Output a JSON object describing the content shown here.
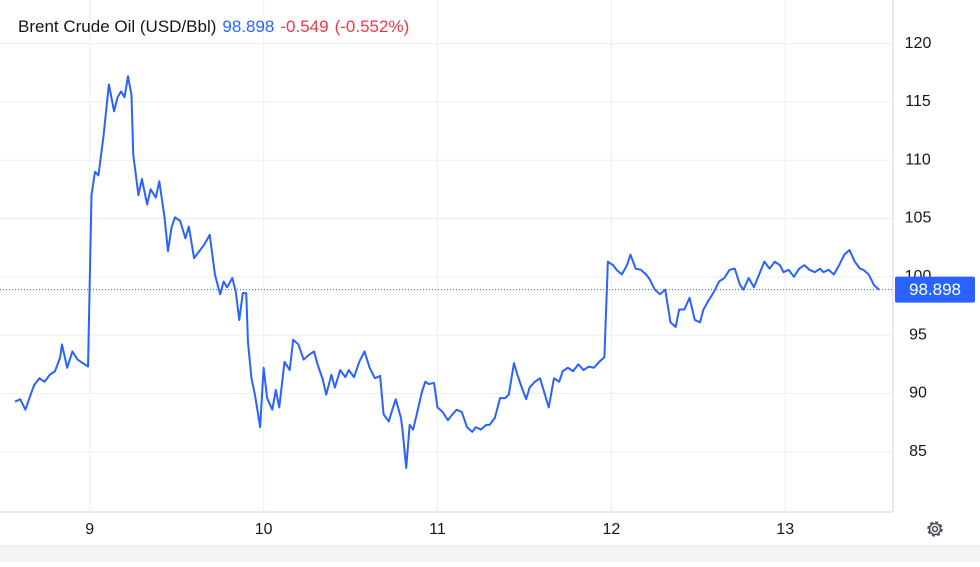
{
  "chart_data": {
    "type": "line",
    "title": "Brent Crude Oil (USD/Bbl)",
    "last_price": 98.898,
    "change": "-0.549",
    "change_percent": "(-0.552%)",
    "color": "#2962ff",
    "grid": true,
    "xlim": [
      8.57,
      13.62
    ],
    "xticks": [
      9,
      10,
      11,
      12,
      13
    ],
    "ylim": [
      80,
      123.4
    ],
    "yticks": [
      85,
      90,
      95,
      100,
      105,
      110,
      115,
      120
    ],
    "x": [
      8.57,
      8.6,
      8.63,
      8.66,
      8.68,
      8.71,
      8.74,
      8.77,
      8.8,
      8.83,
      8.84,
      8.87,
      8.9,
      8.93,
      8.95,
      8.99,
      9.01,
      9.03,
      9.05,
      9.08,
      9.11,
      9.14,
      9.16,
      9.18,
      9.2,
      9.22,
      9.24,
      9.25,
      9.28,
      9.3,
      9.33,
      9.35,
      9.38,
      9.4,
      9.43,
      9.45,
      9.47,
      9.49,
      9.52,
      9.55,
      9.57,
      9.6,
      9.63,
      9.66,
      9.69,
      9.72,
      9.75,
      9.77,
      9.79,
      9.82,
      9.84,
      9.86,
      9.88,
      9.9,
      9.91,
      9.93,
      9.95,
      9.98,
      10.0,
      10.02,
      10.05,
      10.07,
      10.09,
      10.12,
      10.15,
      10.17,
      10.2,
      10.23,
      10.26,
      10.29,
      10.31,
      10.34,
      10.36,
      10.39,
      10.41,
      10.44,
      10.47,
      10.49,
      10.52,
      10.55,
      10.58,
      10.61,
      10.64,
      10.67,
      10.69,
      10.72,
      10.74,
      10.76,
      10.79,
      10.8,
      10.82,
      10.84,
      10.86,
      10.89,
      10.91,
      10.93,
      10.95,
      10.98,
      11.0,
      11.03,
      11.06,
      11.08,
      11.11,
      11.14,
      11.17,
      11.2,
      11.22,
      11.25,
      11.28,
      11.3,
      11.33,
      11.36,
      11.39,
      11.41,
      11.44,
      11.46,
      11.48,
      11.51,
      11.53,
      11.56,
      11.59,
      11.61,
      11.64,
      11.67,
      11.7,
      11.72,
      11.75,
      11.78,
      11.81,
      11.84,
      11.87,
      11.9,
      11.93,
      11.96,
      11.98,
      12.01,
      12.03,
      12.06,
      12.09,
      12.11,
      12.14,
      12.17,
      12.2,
      12.22,
      12.25,
      12.28,
      12.31,
      12.34,
      12.37,
      12.39,
      12.42,
      12.45,
      12.48,
      12.51,
      12.53,
      12.56,
      12.59,
      12.62,
      12.65,
      12.68,
      12.71,
      12.74,
      12.76,
      12.79,
      12.82,
      12.85,
      12.88,
      12.91,
      12.94,
      12.97,
      12.99,
      13.02,
      13.05,
      13.08,
      13.11,
      13.14,
      13.17,
      13.2,
      13.22,
      13.25,
      13.28,
      13.31,
      13.34,
      13.37,
      13.4,
      13.43,
      13.45,
      13.48,
      13.51,
      13.54
    ],
    "series": [
      {
        "name": "Brent Crude Oil",
        "color": "#2962ff",
        "values": [
          89.3,
          89.5,
          88.6,
          89.9,
          90.7,
          91.3,
          91.0,
          91.6,
          91.9,
          93.1,
          94.2,
          92.2,
          93.6,
          92.9,
          92.7,
          92.3,
          107.0,
          109.0,
          108.7,
          112.2,
          116.5,
          114.2,
          115.4,
          115.9,
          115.4,
          117.2,
          115.6,
          110.5,
          107.0,
          108.4,
          106.2,
          107.5,
          106.8,
          108.2,
          105.1,
          102.2,
          104.2,
          105.1,
          104.8,
          103.3,
          104.3,
          101.6,
          102.2,
          102.8,
          103.6,
          100.2,
          98.5,
          99.6,
          99.1,
          99.9,
          98.7,
          96.3,
          98.6,
          98.6,
          94.4,
          91.3,
          89.9,
          87.1,
          92.2,
          89.6,
          88.6,
          90.3,
          88.8,
          92.7,
          92.0,
          94.6,
          94.2,
          92.9,
          93.3,
          93.6,
          92.5,
          91.2,
          89.9,
          91.6,
          90.5,
          92.0,
          91.4,
          92.0,
          91.4,
          92.7,
          93.6,
          92.2,
          91.3,
          91.5,
          88.2,
          87.6,
          88.6,
          89.5,
          87.9,
          86.7,
          83.6,
          87.3,
          86.9,
          88.8,
          90.1,
          91.0,
          90.8,
          90.9,
          88.8,
          88.4,
          87.7,
          88.1,
          88.6,
          88.4,
          87.1,
          86.7,
          87.1,
          86.9,
          87.3,
          87.3,
          87.9,
          89.6,
          89.6,
          89.9,
          92.6,
          91.6,
          90.7,
          89.5,
          90.5,
          91.0,
          91.3,
          90.3,
          88.8,
          91.3,
          91.0,
          91.9,
          92.2,
          91.9,
          92.5,
          92.0,
          92.3,
          92.2,
          92.7,
          93.1,
          101.3,
          101.0,
          100.6,
          100.2,
          101.0,
          101.9,
          100.7,
          100.6,
          100.2,
          99.8,
          98.9,
          98.5,
          98.9,
          96.1,
          95.7,
          97.2,
          97.2,
          98.2,
          96.3,
          96.1,
          97.2,
          98.0,
          98.7,
          99.6,
          99.9,
          100.6,
          100.7,
          99.3,
          98.9,
          99.9,
          99.1,
          100.2,
          101.3,
          100.7,
          101.3,
          101.0,
          100.4,
          100.6,
          100.0,
          100.7,
          101.0,
          100.6,
          100.4,
          100.7,
          100.4,
          100.6,
          100.2,
          101.0,
          101.9,
          102.3,
          101.3,
          100.7,
          100.6,
          100.2,
          99.3,
          98.9
        ]
      }
    ]
  }
}
